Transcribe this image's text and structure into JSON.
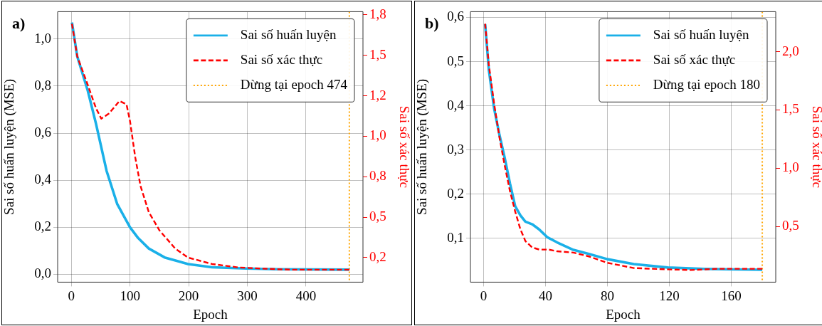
{
  "chart_data": [
    {
      "type": "line",
      "title": "a)",
      "xlabel": "Epoch",
      "ylabel": "Sai số huấn luyện (MSE)",
      "y2label": "Sai số xác thực",
      "xlim": [
        -23.4,
        497.2
      ],
      "xticks": [
        0,
        100,
        200,
        300,
        400
      ],
      "ylim": [
        -0.033,
        1.116
      ],
      "yticks": [
        {
          "value": 0,
          "label": "0,0"
        },
        {
          "value": 0.2,
          "label": "0,2"
        },
        {
          "value": 0.4,
          "label": "0,4"
        },
        {
          "value": 0.6,
          "label": "0,6"
        },
        {
          "value": 0.8,
          "label": "0,8"
        },
        {
          "value": 1.0,
          "label": "1,0"
        }
      ],
      "y2lim": [
        0.098,
        1.77
      ],
      "y2ticks": [
        {
          "value": 0.25,
          "label": "0,2"
        },
        {
          "value": 0.5,
          "label": "0,5"
        },
        {
          "value": 0.75,
          "label": "0,8"
        },
        {
          "value": 1.0,
          "label": "1,0"
        },
        {
          "value": 1.25,
          "label": "1,2"
        },
        {
          "value": 1.5,
          "label": "1,5"
        },
        {
          "value": 1.75,
          "label": "1,8"
        }
      ],
      "grid": true,
      "legend": "top right",
      "marker": "none",
      "series": [
        {
          "name": "Sai số huấn luyện",
          "color": "#1ab0e8",
          "line_style": "solid",
          "axis": "y",
          "x": [
            1,
            10,
            28,
            42,
            60,
            78,
            100,
            114,
            132,
            159,
            199,
            240,
            298,
            352,
            474
          ],
          "values": [
            1.07,
            0.926,
            0.78,
            0.64,
            0.44,
            0.3,
            0.2,
            0.154,
            0.11,
            0.072,
            0.044,
            0.03,
            0.025,
            0.022,
            0.02
          ]
        },
        {
          "name": "Sai số xác thực",
          "color": "#ff0000",
          "line_style": "dashed",
          "axis": "y2",
          "x": [
            1,
            10,
            28,
            42,
            51,
            64,
            82,
            94,
            100,
            109,
            118,
            132,
            150,
            177,
            199,
            240,
            285,
            330,
            375,
            474
          ],
          "values": [
            1.695,
            1.494,
            1.317,
            1.173,
            1.109,
            1.14,
            1.218,
            1.197,
            1.093,
            0.868,
            0.691,
            0.531,
            0.419,
            0.306,
            0.25,
            0.21,
            0.189,
            0.181,
            0.175,
            0.175
          ]
        }
      ],
      "ref_lines": [
        {
          "axis": "x",
          "value": 474,
          "label": "Dừng tại epoch 474",
          "color": "#ffa500",
          "line_style": "dotted"
        }
      ]
    },
    {
      "type": "line",
      "title": "b)",
      "xlabel": "Epoch",
      "ylabel": "Sai số huấn luyện (MSE)",
      "y2label": "Sai số xác thực",
      "xlim": [
        -8.5,
        188.7
      ],
      "xticks": [
        0,
        40,
        80,
        120,
        160
      ],
      "ylim": [
        0.001,
        0.613
      ],
      "yticks": [
        {
          "value": 0.1,
          "label": "0,1"
        },
        {
          "value": 0.2,
          "label": "0,2"
        },
        {
          "value": 0.3,
          "label": "0,3"
        },
        {
          "value": 0.4,
          "label": "0,4"
        },
        {
          "value": 0.5,
          "label": "0,5"
        },
        {
          "value": 0.6,
          "label": "0,6"
        }
      ],
      "y2lim": [
        0.021,
        2.344
      ],
      "y2ticks": [
        {
          "value": 0.5,
          "label": "0,5"
        },
        {
          "value": 1.0,
          "label": "1,0"
        },
        {
          "value": 1.5,
          "label": "1,5"
        },
        {
          "value": 2.0,
          "label": "2,0"
        }
      ],
      "grid": true,
      "legend": "top right",
      "marker": "none",
      "series": [
        {
          "name": "Sai số huấn luyện",
          "color": "#1ab0e8",
          "line_style": "solid",
          "axis": "y",
          "x": [
            1,
            3.4,
            6.8,
            10.2,
            13.6,
            17,
            20.4,
            23.8,
            27,
            31.4,
            36,
            41,
            47.5,
            58,
            68,
            80,
            97,
            119,
            142.5,
            180
          ],
          "values": [
            0.585,
            0.481,
            0.394,
            0.335,
            0.283,
            0.225,
            0.173,
            0.152,
            0.138,
            0.132,
            0.12,
            0.103,
            0.091,
            0.074,
            0.065,
            0.053,
            0.042,
            0.034,
            0.031,
            0.029
          ]
        },
        {
          "name": "Sai số xác thực",
          "color": "#ff0000",
          "line_style": "dashed",
          "axis": "y2",
          "x": [
            1,
            3.4,
            6.8,
            10.2,
            13.6,
            17,
            20.4,
            23.8,
            27,
            31.4,
            36,
            42,
            47.5,
            58,
            68,
            80,
            97,
            119,
            134,
            151,
            180
          ],
          "values": [
            2.24,
            1.886,
            1.555,
            1.268,
            1.025,
            0.805,
            0.628,
            0.474,
            0.374,
            0.319,
            0.301,
            0.301,
            0.286,
            0.275,
            0.242,
            0.187,
            0.142,
            0.131,
            0.125,
            0.136,
            0.136
          ]
        }
      ],
      "ref_lines": [
        {
          "axis": "x",
          "value": 180,
          "label": "Dừng tại epoch 180",
          "color": "#ffa500",
          "line_style": "dotted"
        }
      ]
    }
  ]
}
